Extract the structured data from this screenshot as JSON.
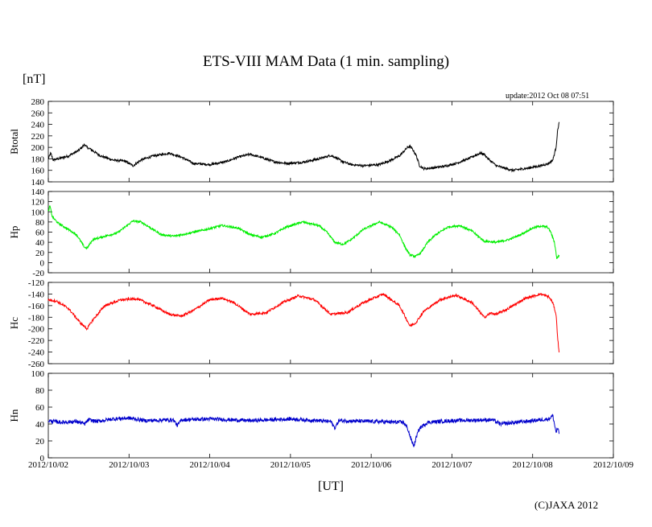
{
  "header": {
    "title": "ETS-VIII MAM Data (1 min. sampling)",
    "unit_label": "[nT]",
    "update_text": "update:2012 Oct 08 07:51",
    "credit": "(C)JAXA 2012"
  },
  "chart_data": [
    {
      "type": "line",
      "name": "Btotal",
      "ylabel": "Btotal",
      "color": "#000000",
      "ylim": [
        140,
        280
      ],
      "yticks": [
        "140",
        "160",
        "180",
        "200",
        "220",
        "240",
        "260",
        "280"
      ],
      "x_domain": [
        0,
        7
      ],
      "xlabel": "[UT]",
      "xticks": [
        "2012/10/02",
        "2012/10/03",
        "2012/10/04",
        "2012/10/05",
        "2012/10/06",
        "2012/10/07",
        "2012/10/08",
        "2012/10/09"
      ],
      "x": [
        0.0,
        0.03,
        0.06,
        0.12,
        0.25,
        0.38,
        0.45,
        0.48,
        0.52,
        0.65,
        0.8,
        0.95,
        1.05,
        1.15,
        1.3,
        1.5,
        1.65,
        1.8,
        2.0,
        2.2,
        2.35,
        2.5,
        2.65,
        2.8,
        2.95,
        3.15,
        3.35,
        3.5,
        3.55,
        3.65,
        3.75,
        3.9,
        4.1,
        4.25,
        4.35,
        4.45,
        4.48,
        4.52,
        4.56,
        4.6,
        4.65,
        4.75,
        4.9,
        5.05,
        5.2,
        5.35,
        5.4,
        5.45,
        5.55,
        5.75,
        5.95,
        6.1,
        6.2,
        6.25,
        6.29,
        6.31,
        6.33
      ],
      "noise": 2,
      "values": [
        180,
        190,
        178,
        180,
        185,
        195,
        205,
        200,
        197,
        185,
        178,
        176,
        168,
        178,
        185,
        190,
        183,
        172,
        170,
        175,
        183,
        188,
        182,
        175,
        172,
        174,
        180,
        186,
        183,
        175,
        170,
        168,
        170,
        178,
        185,
        200,
        202,
        195,
        185,
        168,
        163,
        164,
        167,
        172,
        180,
        190,
        188,
        180,
        168,
        160,
        164,
        168,
        172,
        178,
        200,
        230,
        245
      ]
    },
    {
      "type": "line",
      "name": "Hp",
      "ylabel": "Hp",
      "color": "#00ee00",
      "ylim": [
        -20,
        140
      ],
      "yticks": [
        "-20",
        "0",
        "20",
        "40",
        "60",
        "80",
        "100",
        "120",
        "140"
      ],
      "x_domain": [
        0,
        7
      ],
      "x": [
        0.0,
        0.02,
        0.05,
        0.12,
        0.25,
        0.35,
        0.45,
        0.48,
        0.55,
        0.7,
        0.85,
        0.95,
        1.05,
        1.15,
        1.3,
        1.4,
        1.55,
        1.75,
        1.95,
        2.15,
        2.35,
        2.5,
        2.65,
        2.8,
        2.95,
        3.15,
        3.35,
        3.45,
        3.55,
        3.65,
        3.75,
        3.9,
        4.1,
        4.25,
        4.35,
        4.42,
        4.48,
        4.55,
        4.62,
        4.7,
        4.8,
        4.95,
        5.1,
        5.25,
        5.4,
        5.55,
        5.7,
        5.85,
        6.0,
        6.1,
        6.18,
        6.22,
        6.27,
        6.3,
        6.33
      ],
      "noise": 2,
      "values": [
        100,
        112,
        90,
        78,
        65,
        55,
        30,
        28,
        45,
        52,
        58,
        70,
        82,
        80,
        65,
        55,
        52,
        58,
        65,
        73,
        68,
        55,
        50,
        57,
        70,
        80,
        73,
        60,
        40,
        36,
        45,
        65,
        80,
        70,
        55,
        30,
        15,
        12,
        20,
        40,
        55,
        70,
        73,
        62,
        42,
        40,
        45,
        55,
        68,
        72,
        70,
        62,
        40,
        8,
        15
      ]
    },
    {
      "type": "line",
      "name": "Hc",
      "ylabel": "Hc",
      "color": "#ff0000",
      "ylim": [
        -260,
        -120
      ],
      "yticks": [
        "-260",
        "-240",
        "-220",
        "-200",
        "-180",
        "-160",
        "-140",
        "-120"
      ],
      "x_domain": [
        0,
        7
      ],
      "x": [
        0.0,
        0.1,
        0.25,
        0.4,
        0.48,
        0.55,
        0.7,
        0.9,
        1.1,
        1.3,
        1.5,
        1.65,
        1.8,
        2.0,
        2.15,
        2.3,
        2.5,
        2.7,
        2.9,
        3.1,
        3.3,
        3.5,
        3.7,
        3.9,
        4.15,
        4.35,
        4.48,
        4.55,
        4.65,
        4.85,
        5.05,
        5.25,
        5.4,
        5.48,
        5.55,
        5.7,
        5.9,
        6.1,
        6.2,
        6.25,
        6.29,
        6.31,
        6.33
      ],
      "noise": 2,
      "values": [
        -150,
        -152,
        -165,
        -190,
        -200,
        -185,
        -160,
        -150,
        -148,
        -160,
        -175,
        -178,
        -168,
        -150,
        -147,
        -155,
        -175,
        -172,
        -155,
        -143,
        -150,
        -175,
        -172,
        -155,
        -140,
        -160,
        -195,
        -190,
        -170,
        -150,
        -142,
        -155,
        -180,
        -173,
        -175,
        -165,
        -148,
        -140,
        -145,
        -155,
        -175,
        -215,
        -245
      ]
    },
    {
      "type": "line",
      "name": "Hn",
      "ylabel": "Hn",
      "color": "#0000cc",
      "ylim": [
        0,
        100
      ],
      "yticks": [
        "0",
        "20",
        "40",
        "60",
        "80",
        "100"
      ],
      "x_domain": [
        0,
        7
      ],
      "x": [
        0.0,
        0.15,
        0.35,
        0.45,
        0.5,
        0.6,
        0.8,
        1.0,
        1.2,
        1.55,
        1.6,
        1.65,
        2.0,
        2.5,
        3.0,
        3.5,
        3.55,
        3.6,
        4.0,
        4.4,
        4.45,
        4.5,
        4.53,
        4.56,
        4.6,
        4.7,
        5.0,
        5.5,
        5.6,
        6.0,
        6.2,
        6.25,
        6.29,
        6.31,
        6.33
      ],
      "noise": 2.2,
      "values": [
        44,
        42,
        43,
        40,
        45,
        43,
        46,
        47,
        44,
        45,
        38,
        45,
        46,
        44,
        46,
        43,
        35,
        44,
        43,
        42,
        35,
        20,
        14,
        25,
        35,
        42,
        44,
        45,
        40,
        44,
        46,
        50,
        30,
        35,
        28
      ]
    }
  ]
}
